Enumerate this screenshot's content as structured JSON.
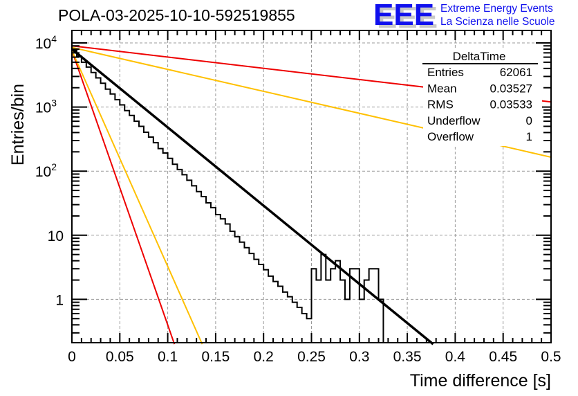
{
  "title": "POLA-03-2025-10-10-592519855",
  "logo": {
    "letters": "EEE",
    "line1": "Extreme Energy Events",
    "line2": "La Scienza nelle Scuole",
    "color": "#1010ee"
  },
  "stats_box": {
    "title": "DeltaTime",
    "rows": [
      {
        "label": "Entries",
        "value": "62061"
      },
      {
        "label": "Mean",
        "value": "0.03527"
      },
      {
        "label": "RMS",
        "value": "0.03533"
      },
      {
        "label": "Underflow",
        "value": "0"
      },
      {
        "label": "Overflow",
        "value": "1"
      }
    ]
  },
  "chart_data": {
    "type": "bar",
    "histogram_style": "step",
    "title": "POLA-03-2025-10-10-592519855",
    "xlabel": "Time difference [s]",
    "ylabel": "Entries/bin",
    "xlim": [
      0,
      0.5
    ],
    "ylim": [
      0.2,
      15000
    ],
    "yscale": "log",
    "grid": true,
    "xticks": [
      "0",
      "0.05",
      "0.1",
      "0.15",
      "0.2",
      "0.25",
      "0.3",
      "0.35",
      "0.4",
      "0.45",
      "0.5"
    ],
    "xtick_values": [
      0,
      0.05,
      0.1,
      0.15,
      0.2,
      0.25,
      0.3,
      0.35,
      0.4,
      0.45,
      0.5
    ],
    "yticks": [
      "1",
      "10",
      "10^2",
      "10^3",
      "10^4"
    ],
    "ytick_values": [
      1,
      10,
      100,
      1000,
      10000
    ],
    "bin_width": 0.005,
    "bin_edges_start": 0,
    "counts": [
      7600,
      6200,
      5000,
      4200,
      3450,
      2850,
      2350,
      1900,
      1600,
      1300,
      1080,
      880,
      740,
      600,
      500,
      405,
      340,
      278,
      225,
      192,
      158,
      128,
      106,
      88,
      72,
      59,
      48,
      40,
      32,
      27,
      21,
      18,
      15,
      11.5,
      9.5,
      7.8,
      6.4,
      5.2,
      4.2,
      3.5,
      2.9,
      2.3,
      1.9,
      1.6,
      1.3,
      1.1,
      0.9,
      0.75,
      0.6,
      0.5,
      3,
      2,
      5,
      2,
      3,
      4,
      2,
      1,
      3,
      3,
      1,
      2,
      3,
      3,
      1,
      0,
      0,
      0,
      0,
      0,
      0,
      0,
      0,
      0,
      0,
      0,
      0,
      0,
      0,
      0,
      0,
      0,
      0,
      0,
      0,
      0,
      0,
      0,
      0,
      0,
      0,
      0,
      0,
      0,
      0,
      0,
      0,
      0,
      0,
      0
    ],
    "series": [
      {
        "name": "fit",
        "kind": "exponential",
        "color": "#000000",
        "x": [
          0,
          0.377
        ],
        "y": [
          8000,
          0.2
        ]
      },
      {
        "name": "limit-red-slow",
        "kind": "exponential",
        "color": "#ee0000",
        "x": [
          0,
          0.5
        ],
        "y": [
          9000,
          1200
        ]
      },
      {
        "name": "limit-yellow-slow",
        "kind": "exponential",
        "color": "#ffc000",
        "x": [
          0,
          0.5
        ],
        "y": [
          8500,
          165
        ]
      },
      {
        "name": "limit-red-fast",
        "kind": "exponential",
        "color": "#ee0000",
        "x": [
          0,
          0.107
        ],
        "y": [
          7600,
          0.2
        ]
      },
      {
        "name": "limit-yellow-fast",
        "kind": "exponential",
        "color": "#ffc000",
        "x": [
          0,
          0.136
        ],
        "y": [
          7600,
          0.2
        ]
      }
    ]
  }
}
